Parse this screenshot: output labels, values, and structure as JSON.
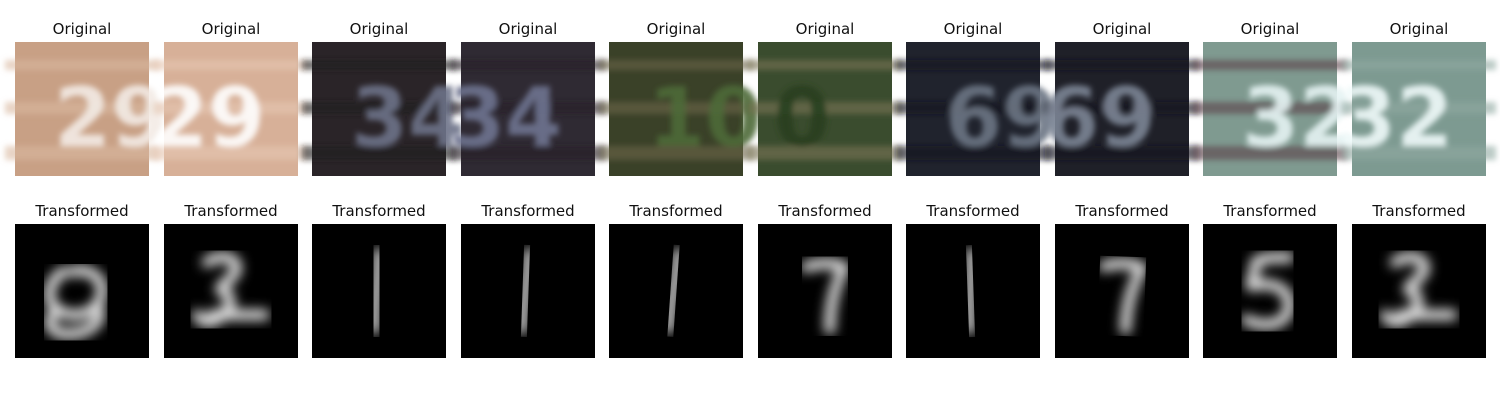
{
  "figure": {
    "rows": [
      {
        "row": "original",
        "panels": [
          {
            "title": "Original",
            "digits": "29",
            "bg": "#c8a085",
            "fg": "#f3ece6",
            "stripe": "#d9b89f"
          },
          {
            "title": "Original",
            "digits": "29",
            "bg": "#d7b098",
            "fg": "#ffffff",
            "stripe": "#e6c6b2"
          },
          {
            "title": "Original",
            "digits": "34",
            "bg": "#2a2428",
            "fg": "#6d7389",
            "stripe": "#1d1a20"
          },
          {
            "title": "Original",
            "digits": "34",
            "bg": "#2f2a33",
            "fg": "#6f7591",
            "stripe": "#231f27"
          },
          {
            "title": "Original",
            "digits": "10",
            "bg": "#3a4128",
            "fg": "#4d6a38",
            "stripe": "#6c6547"
          },
          {
            "title": "Original",
            "digits": "0",
            "bg": "#3a4c2e",
            "fg": "#27401f",
            "stripe": "#7c7557"
          },
          {
            "title": "Original",
            "digits": "69",
            "bg": "#20232d",
            "fg": "#6c7684",
            "stripe": "#17191f"
          },
          {
            "title": "Original",
            "digits": "69",
            "bg": "#1f2028",
            "fg": "#7d8595",
            "stripe": "#16171d"
          },
          {
            "title": "Original",
            "digits": "32",
            "bg": "#7f9a90",
            "fg": "#e6f3f3",
            "stripe": "#5b3f4a"
          },
          {
            "title": "Original",
            "digits": "32",
            "bg": "#7d9a91",
            "fg": "#f0fafa",
            "stripe": "#8fa9a0"
          }
        ]
      },
      {
        "row": "transformed",
        "panels": [
          {
            "title": "Transformed",
            "digit": "8"
          },
          {
            "title": "Transformed",
            "digit": "3"
          },
          {
            "title": "Transformed",
            "digit": "1"
          },
          {
            "title": "Transformed",
            "digit": "1"
          },
          {
            "title": "Transformed",
            "digit": "1"
          },
          {
            "title": "Transformed",
            "digit": "7"
          },
          {
            "title": "Transformed",
            "digit": "1"
          },
          {
            "title": "Transformed",
            "digit": "7"
          },
          {
            "title": "Transformed",
            "digit": "5"
          },
          {
            "title": "Transformed",
            "digit": "3"
          }
        ]
      }
    ]
  }
}
